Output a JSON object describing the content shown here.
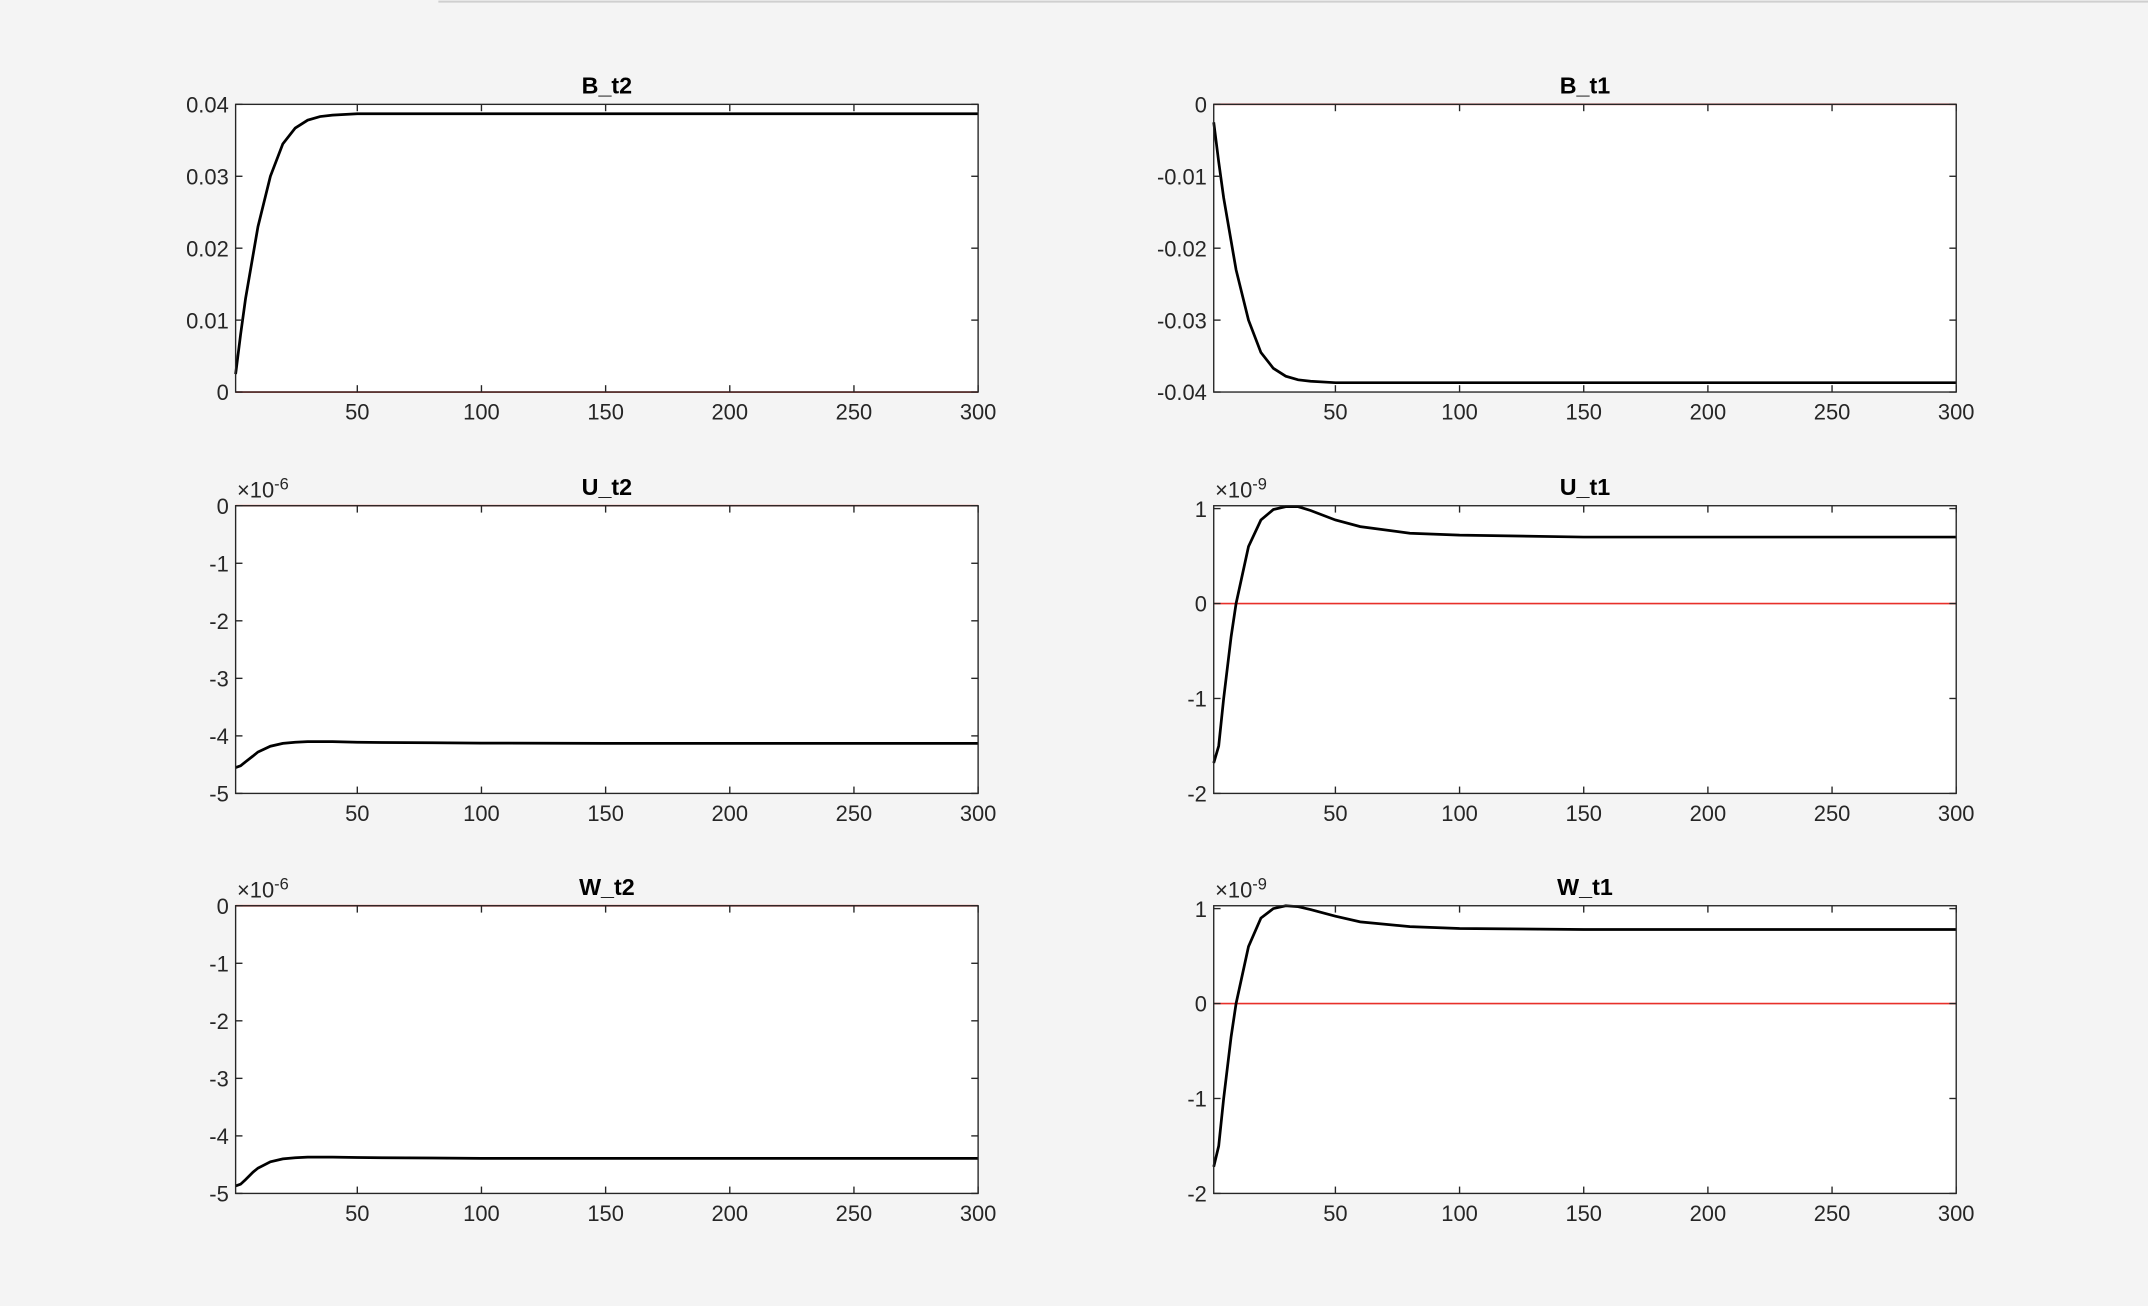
{
  "chart_data": [
    {
      "type": "line",
      "title": "B_t2",
      "x": [
        1,
        3,
        5,
        8,
        10,
        15,
        20,
        25,
        30,
        35,
        40,
        50,
        60,
        80,
        100,
        150,
        200,
        250,
        300
      ],
      "series": [
        {
          "color": "#000000",
          "values": [
            0.0025,
            0.008,
            0.013,
            0.019,
            0.023,
            0.03,
            0.0345,
            0.0367,
            0.0378,
            0.0383,
            0.0385,
            0.0387,
            0.0387,
            0.0387,
            0.0387,
            0.0387,
            0.0387,
            0.0387,
            0.0387
          ]
        }
      ],
      "reference_line": {
        "value": 0,
        "color": "#e8302a"
      },
      "xlim": [
        1,
        300
      ],
      "xticks": [
        50,
        100,
        150,
        200,
        250,
        300
      ],
      "ylim": [
        0,
        0.04
      ],
      "yticks": [
        0,
        0.01,
        0.02,
        0.03,
        0.04
      ]
    },
    {
      "type": "line",
      "title": "B_t1",
      "x": [
        1,
        3,
        5,
        8,
        10,
        15,
        20,
        25,
        30,
        35,
        40,
        50,
        60,
        80,
        100,
        150,
        200,
        250,
        300
      ],
      "series": [
        {
          "color": "#000000",
          "values": [
            -0.0025,
            -0.008,
            -0.013,
            -0.019,
            -0.023,
            -0.03,
            -0.0345,
            -0.0367,
            -0.0378,
            -0.0383,
            -0.0385,
            -0.0387,
            -0.0387,
            -0.0387,
            -0.0387,
            -0.0387,
            -0.0387,
            -0.0387,
            -0.0387
          ]
        }
      ],
      "reference_line": {
        "value": 0,
        "color": "#e8302a"
      },
      "xlim": [
        1,
        300
      ],
      "xticks": [
        50,
        100,
        150,
        200,
        250,
        300
      ],
      "ylim": [
        -0.04,
        0
      ],
      "yticks": [
        -0.04,
        -0.03,
        -0.02,
        -0.01,
        0
      ]
    },
    {
      "type": "line",
      "title": "U_t2",
      "y_multiplier": {
        "base": "×10",
        "exponent": "-6"
      },
      "x": [
        1,
        3,
        5,
        8,
        10,
        15,
        20,
        25,
        30,
        35,
        40,
        50,
        60,
        80,
        100,
        150,
        200,
        250,
        300
      ],
      "series": [
        {
          "color": "#000000",
          "values": [
            -4.55,
            -4.52,
            -4.45,
            -4.35,
            -4.28,
            -4.18,
            -4.13,
            -4.11,
            -4.1,
            -4.1,
            -4.1,
            -4.11,
            -4.115,
            -4.12,
            -4.125,
            -4.13,
            -4.13,
            -4.13,
            -4.13
          ]
        }
      ],
      "reference_line": {
        "value": 0,
        "color": "#e8302a"
      },
      "xlim": [
        1,
        300
      ],
      "xticks": [
        50,
        100,
        150,
        200,
        250,
        300
      ],
      "ylim": [
        -5,
        0
      ],
      "yticks": [
        -5,
        -4,
        -3,
        -2,
        -1,
        0
      ]
    },
    {
      "type": "line",
      "title": "U_t1",
      "y_multiplier": {
        "base": "×10",
        "exponent": "-9"
      },
      "x": [
        1,
        3,
        5,
        8,
        10,
        15,
        20,
        25,
        30,
        35,
        40,
        50,
        60,
        80,
        100,
        150,
        200,
        250,
        300
      ],
      "series": [
        {
          "color": "#000000",
          "values": [
            -1.68,
            -1.5,
            -1.0,
            -0.35,
            0.0,
            0.6,
            0.88,
            0.99,
            1.02,
            1.02,
            0.98,
            0.88,
            0.81,
            0.74,
            0.72,
            0.7,
            0.7,
            0.7,
            0.7
          ]
        }
      ],
      "reference_line": {
        "value": 0,
        "color": "#e8302a"
      },
      "xlim": [
        1,
        300
      ],
      "xticks": [
        50,
        100,
        150,
        200,
        250,
        300
      ],
      "ylim": [
        -2,
        1.03
      ],
      "yticks": [
        -2,
        -1,
        0,
        1
      ]
    },
    {
      "type": "line",
      "title": "W_t2",
      "y_multiplier": {
        "base": "×10",
        "exponent": "-6"
      },
      "x": [
        1,
        3,
        5,
        8,
        10,
        15,
        20,
        25,
        30,
        35,
        40,
        50,
        60,
        80,
        100,
        150,
        200,
        250,
        300
      ],
      "series": [
        {
          "color": "#000000",
          "values": [
            -4.87,
            -4.84,
            -4.76,
            -4.63,
            -4.56,
            -4.45,
            -4.4,
            -4.38,
            -4.37,
            -4.37,
            -4.37,
            -4.375,
            -4.38,
            -4.385,
            -4.39,
            -4.39,
            -4.39,
            -4.39,
            -4.39
          ]
        }
      ],
      "reference_line": {
        "value": 0,
        "color": "#e8302a"
      },
      "xlim": [
        1,
        300
      ],
      "xticks": [
        50,
        100,
        150,
        200,
        250,
        300
      ],
      "ylim": [
        -5,
        0
      ],
      "yticks": [
        -5,
        -4,
        -3,
        -2,
        -1,
        0
      ]
    },
    {
      "type": "line",
      "title": "W_t1",
      "y_multiplier": {
        "base": "×10",
        "exponent": "-9"
      },
      "x": [
        1,
        3,
        5,
        8,
        10,
        15,
        20,
        25,
        30,
        35,
        40,
        50,
        60,
        80,
        100,
        150,
        200,
        250,
        300
      ],
      "series": [
        {
          "color": "#000000",
          "values": [
            -1.72,
            -1.5,
            -1.0,
            -0.35,
            0.0,
            0.6,
            0.9,
            1.0,
            1.03,
            1.02,
            0.99,
            0.92,
            0.86,
            0.81,
            0.79,
            0.78,
            0.78,
            0.78,
            0.78
          ]
        }
      ],
      "reference_line": {
        "value": 0,
        "color": "#e8302a"
      },
      "xlim": [
        1,
        300
      ],
      "xticks": [
        50,
        100,
        150,
        200,
        250,
        300
      ],
      "ylim": [
        -2,
        1.03
      ],
      "yticks": [
        -2,
        -1,
        0,
        1
      ]
    }
  ]
}
